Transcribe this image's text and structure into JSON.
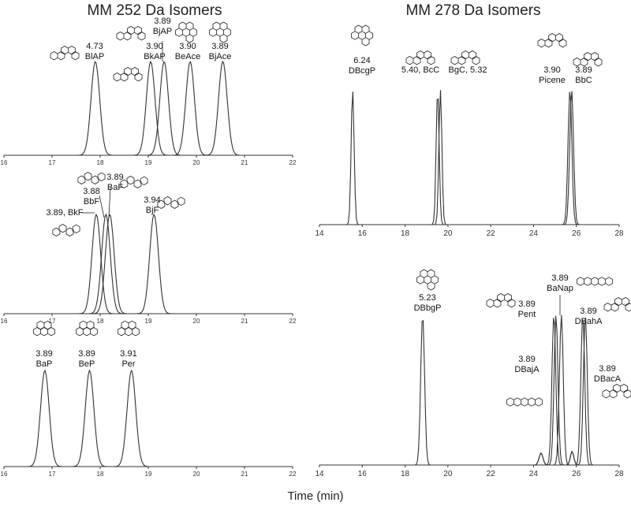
{
  "headings": {
    "left": "MM 252 Da Isomers",
    "right": "MM 278 Da Isomers"
  },
  "xlabel": "Time (min)",
  "chart_data": [
    {
      "type": "line",
      "panel": "left-top",
      "xlim": [
        16,
        22
      ],
      "xticks": [
        16,
        17,
        18,
        19,
        20,
        21,
        22
      ],
      "peaks": [
        {
          "name": "BlAP",
          "value": "4.73",
          "rt": 17.9,
          "width": 0.09
        },
        {
          "name": "BkAP",
          "value": "3.90",
          "rt": 19.05,
          "width": 0.09
        },
        {
          "name": "BjAP",
          "value": "3.89",
          "rt": 19.33,
          "width": 0.09
        },
        {
          "name": "BeAce",
          "value": "3.90",
          "rt": 19.87,
          "width": 0.09
        },
        {
          "name": "BjAce",
          "value": "3.89",
          "rt": 20.55,
          "width": 0.09
        }
      ]
    },
    {
      "type": "line",
      "panel": "left-middle",
      "xlim": [
        16,
        22
      ],
      "xticks": [
        16,
        17,
        18,
        19,
        20,
        21,
        22
      ],
      "peaks": [
        {
          "name": "BkF",
          "value": "3.89",
          "label": "3.89, BkF",
          "rt": 17.92,
          "width": 0.09
        },
        {
          "name": "BbF",
          "value": "3.88",
          "rt": 18.12,
          "width": 0.09
        },
        {
          "name": "BaF",
          "value": "3.89",
          "rt": 18.2,
          "width": 0.09
        },
        {
          "name": "BjF",
          "value": "3.94",
          "rt": 19.12,
          "width": 0.09
        }
      ]
    },
    {
      "type": "line",
      "panel": "left-bottom",
      "xlim": [
        16,
        22
      ],
      "xticks": [
        16,
        17,
        18,
        19,
        20,
        21,
        22
      ],
      "peaks": [
        {
          "name": "BaP",
          "value": "3.89",
          "rt": 16.85,
          "width": 0.09
        },
        {
          "name": "BeP",
          "value": "3.89",
          "rt": 17.78,
          "width": 0.09
        },
        {
          "name": "Per",
          "value": "3.91",
          "rt": 18.65,
          "width": 0.09
        }
      ]
    },
    {
      "type": "line",
      "panel": "right-top",
      "xlim": [
        14,
        28
      ],
      "xticks": [
        14,
        16,
        18,
        20,
        22,
        24,
        26,
        28
      ],
      "peaks": [
        {
          "name": "DBcgP",
          "value": "6.24",
          "rt": 15.55,
          "width": 0.07
        },
        {
          "name": "BcC",
          "value": "5.40",
          "label": "5.40, BcC",
          "rt": 19.52,
          "width": 0.07
        },
        {
          "name": "BgC",
          "value": "5.32",
          "label": "BgC, 5.32",
          "rt": 19.65,
          "width": 0.07
        },
        {
          "name": "Picene",
          "value": "3.90",
          "rt": 25.7,
          "width": 0.09
        },
        {
          "name": "BbC",
          "value": "3.89",
          "rt": 25.78,
          "width": 0.09
        }
      ]
    },
    {
      "type": "line",
      "panel": "right-bottom",
      "xlim": [
        14,
        28
      ],
      "xticks": [
        14,
        16,
        18,
        20,
        22,
        24,
        26,
        28
      ],
      "peaks": [
        {
          "name": "DBbgP",
          "value": "5.23",
          "rt": 18.82,
          "width": 0.09
        },
        {
          "name": "DBajA",
          "value": "3.89",
          "rt": 24.95,
          "width": 0.09
        },
        {
          "name": "Pent",
          "value": "3.89",
          "rt": 25.05,
          "width": 0.09
        },
        {
          "name": "BaNap",
          "value": "3.89",
          "rt": 25.3,
          "width": 0.09
        },
        {
          "name": "DBahA",
          "value": "3.89",
          "rt": 26.3,
          "width": 0.09
        },
        {
          "name": "DBacA",
          "value": "3.89",
          "rt": 26.42,
          "width": 0.09
        }
      ]
    }
  ]
}
